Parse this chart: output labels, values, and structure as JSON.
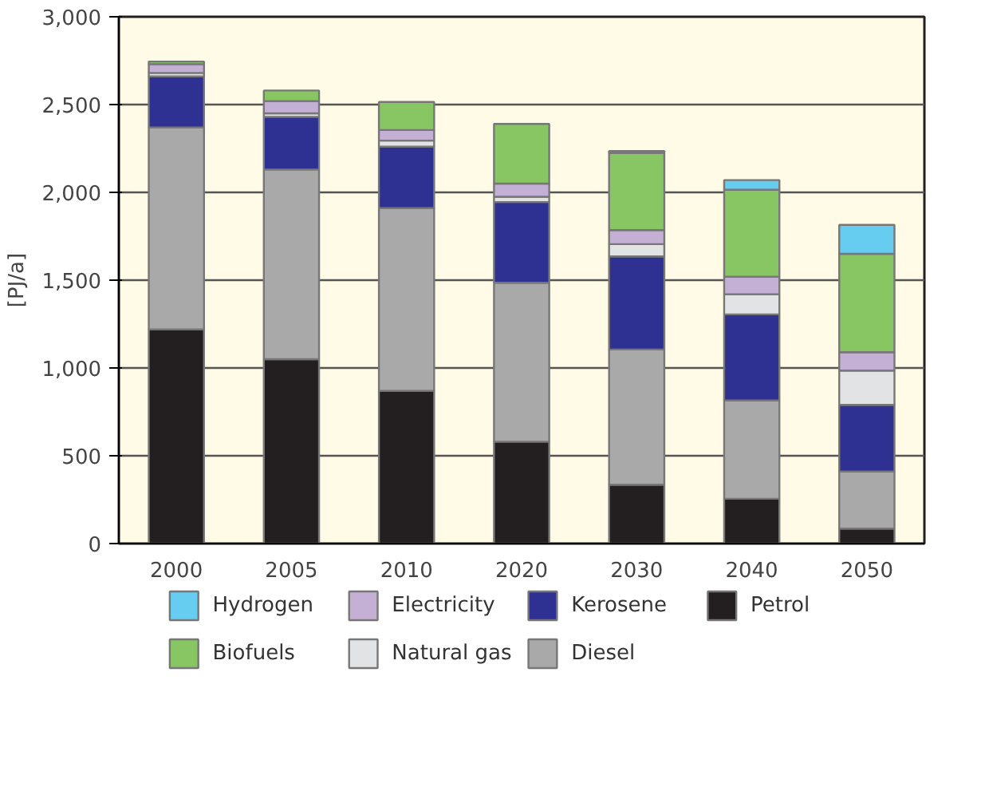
{
  "chart_data": {
    "type": "bar",
    "stacked": true,
    "ylabel": "[PJ/a]",
    "categories": [
      "2000",
      "2005",
      "2010",
      "2020",
      "2030",
      "2040",
      "2050"
    ],
    "series": [
      {
        "name": "Petrol",
        "color": "#231f20",
        "values": [
          1220,
          1050,
          870,
          580,
          335,
          255,
          85
        ]
      },
      {
        "name": "Diesel",
        "color": "#a9a9a9",
        "values": [
          1150,
          1080,
          1040,
          905,
          770,
          560,
          325
        ]
      },
      {
        "name": "Kerosene",
        "color": "#2e3092",
        "values": [
          290,
          300,
          350,
          460,
          530,
          490,
          380
        ]
      },
      {
        "name": "Natural gas",
        "color": "#e2e3e5",
        "values": [
          20,
          20,
          35,
          30,
          70,
          115,
          195
        ]
      },
      {
        "name": "Electricity",
        "color": "#c5b0d5",
        "values": [
          50,
          70,
          60,
          75,
          80,
          100,
          105
        ]
      },
      {
        "name": "Biofuels",
        "color": "#88c663",
        "values": [
          15,
          60,
          160,
          340,
          440,
          495,
          560
        ]
      },
      {
        "name": "Hydrogen",
        "color": "#66ccf0",
        "values": [
          0,
          0,
          0,
          0,
          10,
          55,
          165
        ]
      }
    ],
    "ylim": [
      0,
      3000
    ],
    "yticks": [
      {
        "value": 0,
        "label": "0"
      },
      {
        "value": 500,
        "label": "500"
      },
      {
        "value": 1000,
        "label": "1,000"
      },
      {
        "value": 1500,
        "label": "1,500"
      },
      {
        "value": 2000,
        "label": "2,000"
      },
      {
        "value": 2500,
        "label": "2,500"
      },
      {
        "value": 3000,
        "label": "3,000"
      }
    ],
    "grid": "y",
    "legend": "bottom"
  }
}
